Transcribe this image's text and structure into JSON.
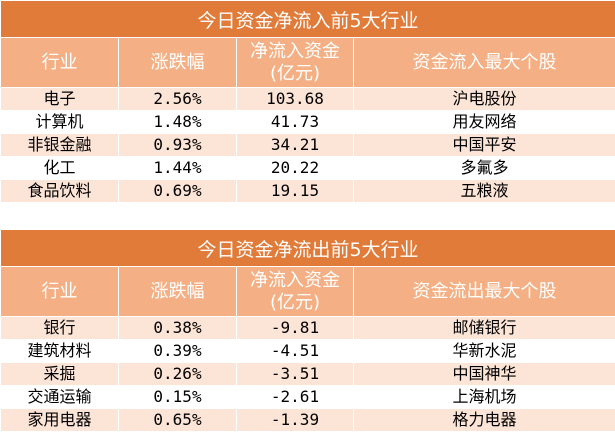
{
  "inflow": {
    "title": "今日资金净流入前5大行业",
    "headers": [
      "行业",
      "涨跌幅",
      "净流入资金",
      "(亿元)",
      "资金流入最大个股"
    ],
    "rows": [
      [
        "电子",
        "2.56%",
        "103.68",
        "沪电股份"
      ],
      [
        "计算机",
        "1.48%",
        "41.73",
        "用友网络"
      ],
      [
        "非银金融",
        "0.93%",
        "34.21",
        "中国平安"
      ],
      [
        "化工",
        "1.44%",
        "20.22",
        "多氟多"
      ],
      [
        "食品饮料",
        "0.69%",
        "19.15",
        "五粮液"
      ]
    ]
  },
  "outflow": {
    "title": "今日资金净流出前5大行业",
    "headers": [
      "行业",
      "涨跌幅",
      "净流入资金",
      "(亿元)",
      "资金流出最大个股"
    ],
    "rows": [
      [
        "银行",
        "0.38%",
        "-9.81",
        "邮储银行"
      ],
      [
        "建筑材料",
        "0.39%",
        "-4.51",
        "华新水泥"
      ],
      [
        "采掘",
        "0.26%",
        "-3.51",
        "中国神华"
      ],
      [
        "交通运输",
        "0.15%",
        "-2.61",
        "上海机场"
      ],
      [
        "家用电器",
        "0.65%",
        "-1.39",
        "格力电器"
      ]
    ]
  }
}
